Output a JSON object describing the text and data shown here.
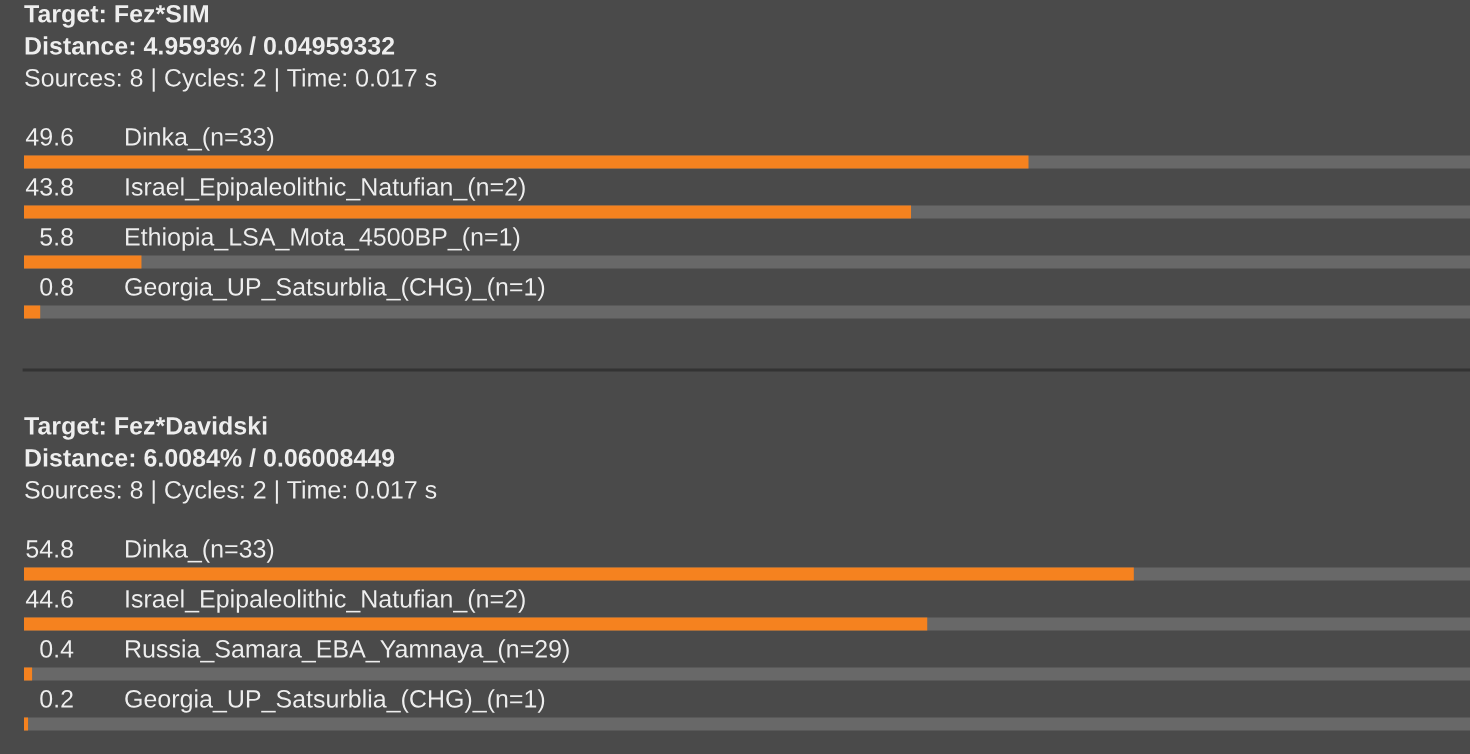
{
  "chart_data": [
    {
      "type": "bar",
      "orientation": "horizontal",
      "title": "Target: Fez*SIM",
      "subtitle": "Distance: 4.9593% / 0.04959332",
      "annotations": [
        "Sources: 8 | Cycles: 2 | Time: 0.017 s"
      ],
      "categories": [
        "Dinka_(n=33)",
        "Israel_Epipaleolithic_Natufian_(n=2)",
        "Ethiopia_LSA_Mota_4500BP_(n=1)",
        "Georgia_UP_Satsurblia_(CHG)_(n=1)"
      ],
      "values": [
        49.6,
        43.8,
        5.8,
        0.8
      ],
      "color": "#f5821f",
      "xlim": [
        0,
        71.4
      ],
      "data_labels": true,
      "tick_labels": false
    },
    {
      "type": "bar",
      "orientation": "horizontal",
      "title": "Target: Fez*Davidski",
      "subtitle": "Distance: 6.0084% / 0.06008449",
      "annotations": [
        "Sources: 8 | Cycles: 2 | Time: 0.017 s"
      ],
      "categories": [
        "Dinka_(n=33)",
        "Israel_Epipaleolithic_Natufian_(n=2)",
        "Russia_Samara_EBA_Yamnaya_(n=29)",
        "Georgia_UP_Satsurblia_(CHG)_(n=1)"
      ],
      "values": [
        54.8,
        44.6,
        0.4,
        0.2
      ],
      "color": "#f5821f",
      "xlim": [
        0,
        71.4
      ],
      "data_labels": true,
      "tick_labels": false
    }
  ]
}
